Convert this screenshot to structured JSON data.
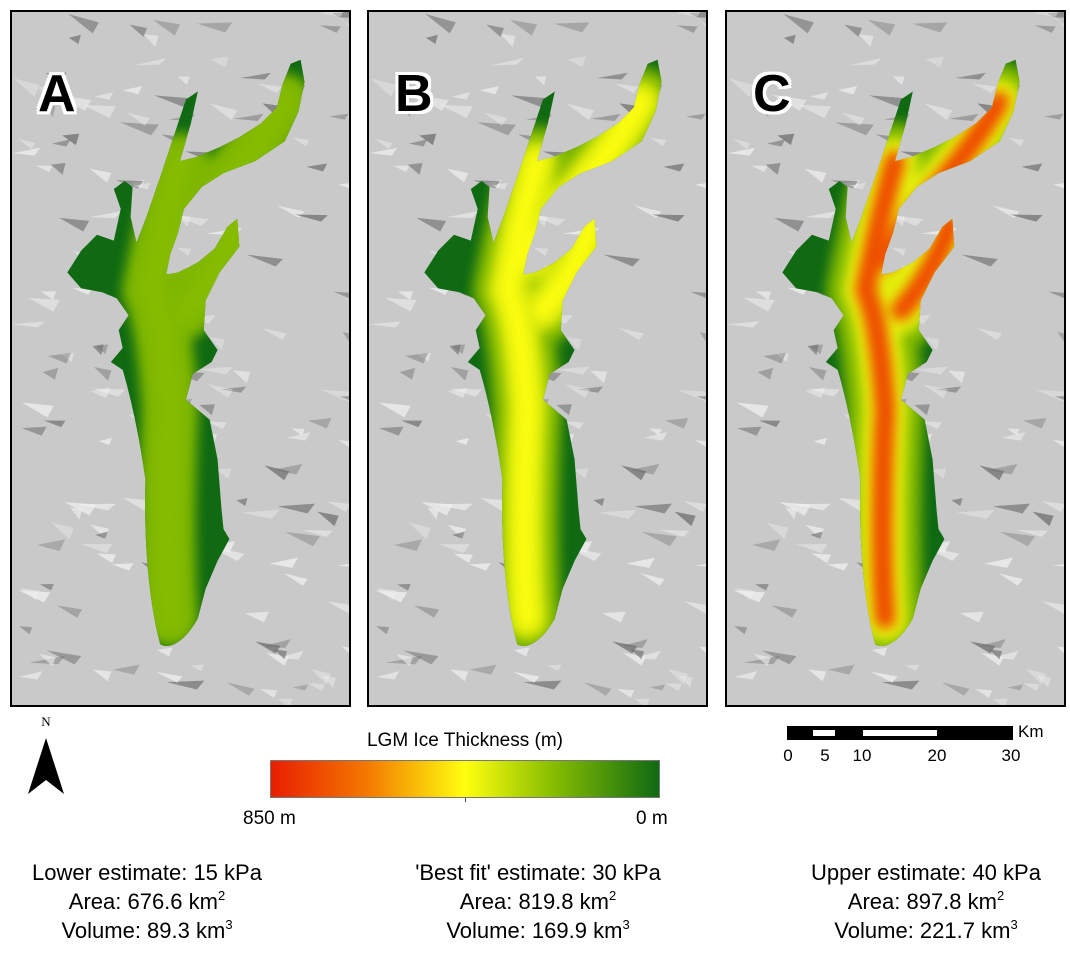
{
  "panels": [
    {
      "letter": "A",
      "caption": {
        "estimate": "Lower estimate: 15 kPa",
        "area_label": "Area: 676.6 km",
        "volume_label": "Volume: 89.3 km"
      }
    },
    {
      "letter": "B",
      "caption": {
        "estimate": "'Best fit' estimate: 30 kPa",
        "area_label": "Area: 819.8 km",
        "volume_label": "Volume: 169.9 km"
      }
    },
    {
      "letter": "C",
      "caption": {
        "estimate": "Upper estimate: 40 kPa",
        "area_label": "Area: 897.8 km",
        "volume_label": "Volume: 221.7 km"
      }
    }
  ],
  "units": {
    "area_exp": "2",
    "volume_exp": "3"
  },
  "north_arrow": {
    "label": "N"
  },
  "legend": {
    "title": "LGM Ice Thickness (m)",
    "max_label": "850 m",
    "min_label": "0 m",
    "colors": [
      "#e81e00",
      "#f47a00",
      "#ffff10",
      "#8abf00",
      "#0f6a12"
    ]
  },
  "scale_bar": {
    "unit": "Km",
    "labels": [
      "0",
      "5",
      "10",
      "20",
      "30"
    ]
  },
  "map_colors": {
    "terrain": "#c9c9c9",
    "ridge_dark": "#6e6e6e",
    "ridge_light": "#f2f2f2",
    "ice_edge": "#0f6a12"
  }
}
